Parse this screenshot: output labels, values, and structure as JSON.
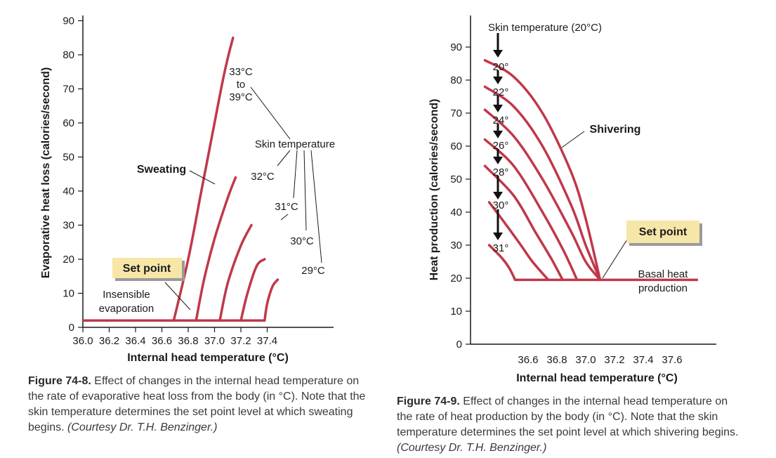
{
  "chart_data": [
    {
      "type": "line",
      "xlabel": "Internal head temperature (°C)",
      "ylabel": "Evaporative heat loss (calories/second)",
      "xlim": [
        36.0,
        37.6
      ],
      "ylim": [
        0,
        90
      ],
      "x_ticks": [
        "36.0",
        "36.2",
        "36.4",
        "36.6",
        "36.8",
        "37.0",
        "37.2",
        "37.4"
      ],
      "y_ticks": [
        "0",
        "10",
        "20",
        "30",
        "40",
        "50",
        "60",
        "70",
        "80",
        "90"
      ],
      "baseline": {
        "label": "Insensible evaporation",
        "line1": "Insensible",
        "line2": "evaporation",
        "y": 2.0,
        "x": [
          36.0,
          37.38
        ]
      },
      "series": [
        {
          "name": "33°C to 39°C",
          "x": [
            36.69,
            36.8,
            36.9,
            37.0,
            37.06,
            37.1,
            37.14
          ],
          "y": [
            2,
            20,
            40,
            60,
            72,
            79,
            85
          ]
        },
        {
          "name": "32°C",
          "x": [
            36.86,
            36.92,
            37.0,
            37.1,
            37.16
          ],
          "y": [
            2,
            14,
            26,
            38,
            44
          ]
        },
        {
          "name": "31°C",
          "x": [
            37.04,
            37.1,
            37.2,
            37.28
          ],
          "y": [
            2,
            13,
            24,
            30
          ]
        },
        {
          "name": "30°C",
          "x": [
            37.2,
            37.25,
            37.32,
            37.38
          ],
          "y": [
            2,
            10,
            18,
            20
          ]
        },
        {
          "name": "29°C",
          "x": [
            37.38,
            37.4,
            37.44,
            37.48
          ],
          "y": [
            2,
            7,
            12,
            14
          ]
        }
      ],
      "annotations": {
        "skin_temperature": "Skin temperature",
        "sweating": "Sweating",
        "set_point": "Set point",
        "t33a": "33°C",
        "t33b": "to",
        "t33c": "39°C",
        "t32": "32°C",
        "t31": "31°C",
        "t30": "30°C",
        "t29": "29°C"
      },
      "grid": false
    },
    {
      "type": "line",
      "xlabel": "Internal head temperature (°C)",
      "ylabel": "Heat production (calories/second)",
      "xlim": [
        36.3,
        37.8
      ],
      "ylim": [
        0,
        100
      ],
      "x_ticks": [
        "36.6",
        "36.8",
        "37.0",
        "37.2",
        "37.4",
        "37.6"
      ],
      "y_ticks": [
        "0",
        "10",
        "20",
        "30",
        "40",
        "50",
        "60",
        "70",
        "80",
        "90"
      ],
      "baseline": {
        "label": "Basal heat production",
        "line1": "Basal heat",
        "line2": "production",
        "y": 19.5,
        "x": [
          36.51,
          37.78
        ]
      },
      "series": [
        {
          "name": "20°",
          "x": [
            36.3,
            36.5,
            36.7,
            36.9,
            37.0,
            37.1
          ],
          "y": [
            86,
            81,
            70,
            52,
            38,
            19.5
          ]
        },
        {
          "name": "22°",
          "x": [
            36.3,
            36.5,
            36.7,
            36.9,
            37.0,
            37.1
          ],
          "y": [
            78,
            72,
            60,
            42,
            30,
            19.5
          ]
        },
        {
          "name": "24°",
          "x": [
            36.3,
            36.5,
            36.7,
            36.9,
            37.0,
            37.1
          ],
          "y": [
            71,
            63,
            50,
            34,
            25,
            19.5
          ]
        },
        {
          "name": "26°",
          "x": [
            36.3,
            36.5,
            36.7,
            36.85,
            36.94
          ],
          "y": [
            62,
            54,
            40,
            28,
            19.5
          ]
        },
        {
          "name": "28°",
          "x": [
            36.3,
            36.5,
            36.65,
            36.76,
            36.84
          ],
          "y": [
            54,
            45,
            34,
            26,
            19.5
          ]
        },
        {
          "name": "30°",
          "x": [
            36.33,
            36.45,
            36.55,
            36.63,
            36.74
          ],
          "y": [
            43,
            36,
            30,
            25,
            19.5
          ]
        },
        {
          "name": "31°",
          "x": [
            36.33,
            36.42,
            36.47,
            36.51
          ],
          "y": [
            30,
            26,
            23,
            19.5
          ]
        }
      ],
      "annotations": {
        "skin_temperature": "Skin temperature (20°C)",
        "shivering": "Shivering",
        "set_point": "Set point",
        "basal_1": "Basal heat",
        "basal_2": "production"
      },
      "grid": false
    }
  ],
  "captions": {
    "fig1": {
      "label": "Figure 74-8.",
      "text": "Effect of changes in the internal head temperature on the rate of evaporative heat loss from the body (in °C). Note that the skin temperature determines the set point level at which sweating begins.",
      "credit": "(Courtesy Dr. T.H. Benzinger.)",
      "line1": "Effect of changes in the internal head temperature on",
      "line2": "the rate of evaporative heat loss from the body (in °C). Note that the",
      "line3": "skin temperature determines the set point level at which sweating",
      "line4": "begins."
    },
    "fig2": {
      "label": "Figure 74-9.",
      "text": "Effect of changes in the internal head temperature on the rate of heat production by the body (in °C). Note that the skin temperature determines the set point level at which shivering begins.",
      "credit": "(Courtesy Dr. T.H. Benzinger.)",
      "line1": "Effect of changes in the internal head temperature on",
      "line2": "the rate of heat production by the body (in °C). Note that the skin",
      "line3": "temperature determines the set point level at which shivering begins."
    }
  },
  "colors": {
    "curve": "#c0384b",
    "setpoint_fill": "#f6e6a8",
    "setpoint_shadow": "#9a9a9a",
    "axis": "#1a1a1a",
    "arrow": "#111111"
  }
}
